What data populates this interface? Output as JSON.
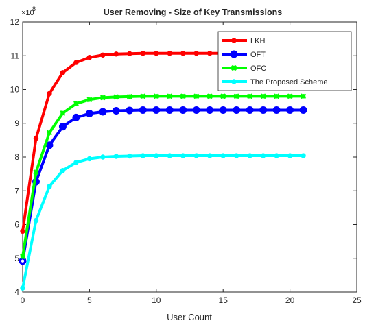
{
  "chart_data": {
    "type": "line",
    "title": "User Removing - Size of Key Transmissions",
    "xlabel": "User Count",
    "ylabel": "",
    "y_exponent_base": "×10",
    "y_exponent_power": "8",
    "xlim": [
      0,
      25
    ],
    "ylim": [
      4,
      12
    ],
    "xticks": [
      "0",
      "5",
      "10",
      "15",
      "20",
      "25"
    ],
    "yticks": [
      "4",
      "5",
      "6",
      "7",
      "8",
      "9",
      "10",
      "11",
      "12"
    ],
    "grid": false,
    "legend_position": "top-right",
    "x": [
      0,
      1,
      2,
      3,
      4,
      5,
      6,
      7,
      8,
      9,
      10,
      11,
      12,
      13,
      14,
      15,
      16,
      17,
      18,
      19,
      20,
      21
    ],
    "series": [
      {
        "name": "LKH",
        "color": "#ff0000",
        "marker": "dot",
        "values": [
          5.8,
          8.55,
          9.88,
          10.5,
          10.8,
          10.95,
          11.02,
          11.05,
          11.06,
          11.07,
          11.07,
          11.07,
          11.07,
          11.07,
          11.07,
          11.07,
          11.07,
          11.07,
          11.07,
          11.07,
          11.07,
          11.07
        ]
      },
      {
        "name": "OFT",
        "color": "#0000ff",
        "marker": "circle",
        "values": [
          4.92,
          7.27,
          8.35,
          8.9,
          9.17,
          9.29,
          9.34,
          9.37,
          9.38,
          9.39,
          9.39,
          9.39,
          9.39,
          9.39,
          9.39,
          9.39,
          9.39,
          9.39,
          9.39,
          9.39,
          9.39,
          9.39
        ]
      },
      {
        "name": "OFC",
        "color": "#00ff00",
        "marker": "star",
        "values": [
          5.05,
          7.55,
          8.72,
          9.3,
          9.58,
          9.7,
          9.76,
          9.78,
          9.79,
          9.8,
          9.8,
          9.8,
          9.8,
          9.8,
          9.8,
          9.8,
          9.8,
          9.8,
          9.8,
          9.8,
          9.8,
          9.8
        ]
      },
      {
        "name": "The Proposed Scheme",
        "color": "#00ffff",
        "marker": "dot",
        "values": [
          4.12,
          6.12,
          7.13,
          7.6,
          7.84,
          7.95,
          8.0,
          8.02,
          8.03,
          8.04,
          8.04,
          8.04,
          8.04,
          8.04,
          8.04,
          8.04,
          8.04,
          8.04,
          8.04,
          8.04,
          8.04,
          8.04
        ]
      }
    ]
  }
}
